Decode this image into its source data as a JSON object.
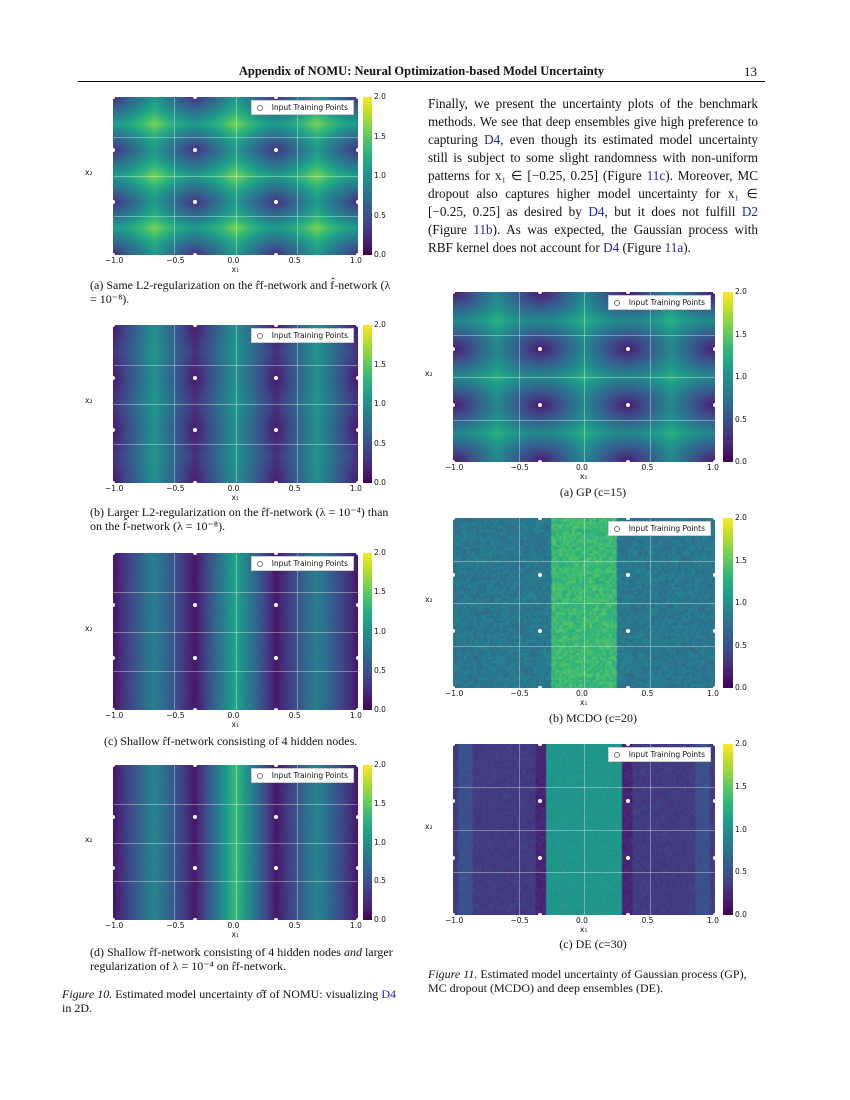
{
  "header": {
    "title": "Appendix of NOMU: Neural Optimization-based Model Uncertainty",
    "page_number": "13"
  },
  "paragraph": [
    {
      "text": "Finally, we present the uncertainty plots of the benchmark methods. We see that deep ensembles give high preference to capturing "
    },
    {
      "text": "D4",
      "link": true
    },
    {
      "text": ", even though its estimated model uncertainty still is subject to some slight randomness with non-uniform patterns for x₁ ∈ [−0.25, 0.25] (Figure "
    },
    {
      "text": "11c",
      "link": true
    },
    {
      "text": "). Moreover, MC dropout also captures higher model uncertainty for x₁ ∈ [−0.25, 0.25] as desired by "
    },
    {
      "text": "D4",
      "link": true
    },
    {
      "text": ", but it does not fulfill "
    },
    {
      "text": "D2",
      "link": true
    },
    {
      "text": " (Figure "
    },
    {
      "text": "11b",
      "link": true
    },
    {
      "text": "). As was expected, the Gaussian process with RBF kernel does not account for "
    },
    {
      "text": "D4",
      "link": true
    },
    {
      "text": " (Figure "
    },
    {
      "text": "11a",
      "link": true
    },
    {
      "text": ")."
    }
  ],
  "captions": {
    "fig10a": "(a) Same L2-regularization on the r̂f-network and f̂-network (λ = 10⁻⁸).",
    "fig10b": "(b) Larger L2-regularization on the r̂f-network (λ = 10⁻⁴) than on the f̂-network (λ = 10⁻⁸).",
    "fig10c": "(c) Shallow r̂f-network consisting of 4 hidden nodes.",
    "fig10d_1": "(d) Shallow r̂f-network consisting of 4 hidden nodes ",
    "fig10d_and": "and",
    "fig10d_2": " larger regularization of λ = 10⁻⁴ on r̂f-network.",
    "fig10_label": "Figure 10.",
    "fig10_text": " Estimated model uncertainty σ̂f of NOMU: visualizing ",
    "fig10_link": "D4",
    "fig10_tail": " in 2D.",
    "fig11a": "(a) GP (c=15)",
    "fig11b": "(b)  MCDO (c=20)",
    "fig11c": "(c) DE (c=30)",
    "fig11_label": "Figure 11.",
    "fig11_text": " Estimated model uncertainty of Gaussian process (GP), MC dropout (MCDO) and deep ensembles (DE)."
  },
  "chart_data": [
    {
      "id": "fig10a",
      "type": "heatmap",
      "xlabel": "x₁",
      "ylabel": "x₂",
      "xlim": [
        -1,
        1
      ],
      "ylim": [
        -1,
        1
      ],
      "xticks": [
        "−1.0",
        "−0.5",
        "0.0",
        "0.5",
        "1.0"
      ],
      "yticks": [
        "−1.0",
        "−0.5",
        "0.0",
        "0.5",
        "1.0"
      ],
      "colorbar": {
        "range": [
          0,
          2
        ],
        "ticks": [
          "0.0",
          "0.5",
          "1.0",
          "1.5",
          "2.0"
        ],
        "colormap": "viridis"
      },
      "legend": "Input Training Points",
      "legend_position": "top-right",
      "grid": true,
      "training_points_x1": [
        -1,
        -0.333,
        0.333,
        1
      ],
      "training_points_x2": [
        -1,
        -0.333,
        0.333,
        1
      ],
      "pattern": "radial"
    },
    {
      "id": "fig10b",
      "type": "heatmap",
      "xlabel": "x₁",
      "ylabel": "x₂",
      "xlim": [
        -1,
        1
      ],
      "ylim": [
        -1,
        1
      ],
      "xticks": [
        "−1.0",
        "−0.5",
        "0.0",
        "0.5",
        "1.0"
      ],
      "yticks": [
        "−1.0",
        "−0.5",
        "0.0",
        "0.5",
        "1.0"
      ],
      "colorbar": {
        "range": [
          0,
          2
        ],
        "ticks": [
          "0.0",
          "0.5",
          "1.0",
          "1.5",
          "2.0"
        ],
        "colormap": "viridis"
      },
      "legend": "Input Training Points",
      "legend_position": "top-right",
      "grid": true,
      "training_points_x1": [
        -1,
        -0.333,
        0.333,
        1
      ],
      "training_points_x2": [
        -1,
        -0.333,
        0.333,
        1
      ],
      "pattern": "mixed"
    },
    {
      "id": "fig10c",
      "type": "heatmap",
      "xlabel": "x₁",
      "ylabel": "x₂",
      "xlim": [
        -1,
        1
      ],
      "ylim": [
        -1,
        1
      ],
      "xticks": [
        "−1.0",
        "−0.5",
        "0.0",
        "0.5",
        "1.0"
      ],
      "yticks": [
        "−1.0",
        "−0.5",
        "0.0",
        "0.5",
        "1.0"
      ],
      "colorbar": {
        "range": [
          0,
          2
        ],
        "ticks": [
          "0.0",
          "0.5",
          "1.0",
          "1.5",
          "2.0"
        ],
        "colormap": "viridis"
      },
      "legend": "Input Training Points",
      "legend_position": "top-right",
      "grid": true,
      "training_points_x1": [
        -1,
        -0.333,
        0.333,
        1
      ],
      "training_points_x2": [
        -1,
        -0.333,
        0.333,
        1
      ],
      "pattern": "vertical"
    },
    {
      "id": "fig10d",
      "type": "heatmap",
      "xlabel": "x₁",
      "ylabel": "x₂",
      "xlim": [
        -1,
        1
      ],
      "ylim": [
        -1,
        1
      ],
      "xticks": [
        "−1.0",
        "−0.5",
        "0.0",
        "0.5",
        "1.0"
      ],
      "yticks": [
        "−1.0",
        "−0.5",
        "0.0",
        "0.5",
        "1.0"
      ],
      "colorbar": {
        "range": [
          0,
          2
        ],
        "ticks": [
          "0.0",
          "0.5",
          "1.0",
          "1.5",
          "2.0"
        ],
        "colormap": "viridis"
      },
      "legend": "Input Training Points",
      "legend_position": "top-right",
      "grid": true,
      "training_points_x1": [
        -1,
        -0.333,
        0.333,
        1
      ],
      "training_points_x2": [
        -1,
        -0.333,
        0.333,
        1
      ],
      "pattern": "vertical-strong"
    },
    {
      "id": "fig11a",
      "type": "heatmap",
      "xlabel": "x₁",
      "ylabel": "x₂",
      "xlim": [
        -1,
        1
      ],
      "ylim": [
        -1,
        1
      ],
      "xticks": [
        "−1.0",
        "−0.5",
        "0.0",
        "0.5",
        "1.0"
      ],
      "yticks": [
        "−1.0",
        "−0.5",
        "0.0",
        "0.5",
        "1.0"
      ],
      "colorbar": {
        "range": [
          0,
          2
        ],
        "ticks": [
          "0.0",
          "0.5",
          "1.0",
          "1.5",
          "2.0"
        ],
        "colormap": "viridis"
      },
      "legend": "Input Training Points",
      "legend_position": "top-right",
      "grid": true,
      "training_points_x1": [
        -1,
        -0.333,
        0.333,
        1
      ],
      "training_points_x2": [
        -1,
        -0.333,
        0.333,
        1
      ],
      "pattern": "gp"
    },
    {
      "id": "fig11b",
      "type": "heatmap",
      "xlabel": "x₁",
      "ylabel": "x₂",
      "xlim": [
        -1,
        1
      ],
      "ylim": [
        -1,
        1
      ],
      "xticks": [
        "−1.0",
        "−0.5",
        "0.0",
        "0.5",
        "1.0"
      ],
      "yticks": [
        "−1.0",
        "−0.5",
        "0.0",
        "0.5",
        "1.0"
      ],
      "colorbar": {
        "range": [
          0,
          2
        ],
        "ticks": [
          "0.0",
          "0.5",
          "1.0",
          "1.5",
          "2.0"
        ],
        "colormap": "viridis"
      },
      "legend": "Input Training Points",
      "legend_position": "top-right",
      "grid": true,
      "training_points_x1": [
        -1,
        -0.333,
        0.333,
        1
      ],
      "training_points_x2": [
        -1,
        -0.333,
        0.333,
        1
      ],
      "pattern": "mcdo"
    },
    {
      "id": "fig11c",
      "type": "heatmap",
      "xlabel": "x₁",
      "ylabel": "x₂",
      "xlim": [
        -1,
        1
      ],
      "ylim": [
        -1,
        1
      ],
      "xticks": [
        "−1.0",
        "−0.5",
        "0.0",
        "0.5",
        "1.0"
      ],
      "yticks": [
        "−1.0",
        "−0.5",
        "0.0",
        "0.5",
        "1.0"
      ],
      "colorbar": {
        "range": [
          0,
          2
        ],
        "ticks": [
          "0.0",
          "0.5",
          "1.0",
          "1.5",
          "2.0"
        ],
        "colormap": "viridis"
      },
      "legend": "Input Training Points",
      "legend_position": "top-right",
      "grid": true,
      "training_points_x1": [
        -1,
        -0.333,
        0.333,
        1
      ],
      "training_points_x2": [
        -1,
        -0.333,
        0.333,
        1
      ],
      "pattern": "de"
    }
  ]
}
